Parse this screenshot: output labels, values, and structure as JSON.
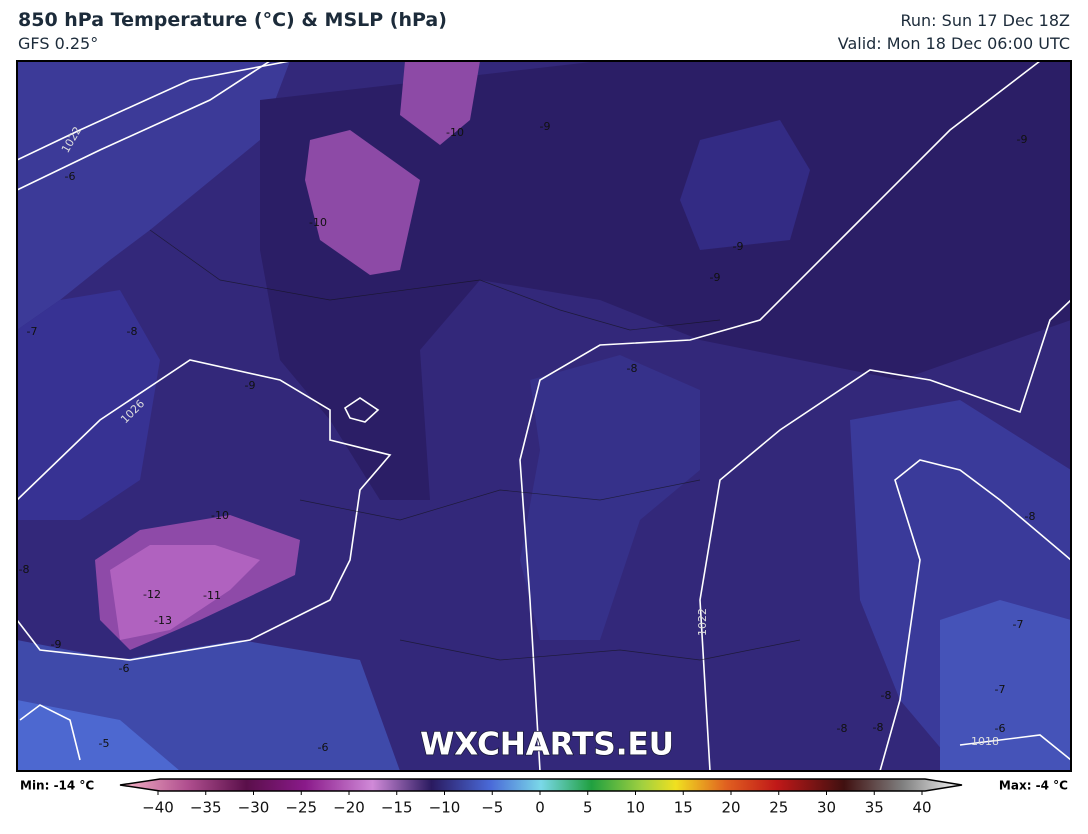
{
  "header": {
    "title": "850 hPa Temperature (°C) & MSLP (hPa)",
    "model": "GFS 0.25°",
    "run": "Run: Sun 17 Dec 18Z",
    "valid": "Valid: Mon 18 Dec 06:00 UTC"
  },
  "map": {
    "contour_labels": [
      -6,
      1022,
      -7,
      -8,
      -9,
      1026,
      -10,
      -10,
      -9,
      -9,
      -9,
      -9,
      -8,
      -8,
      -7,
      -7,
      -6,
      1018,
      -8,
      -8,
      -8,
      -5,
      -6,
      -6,
      -12,
      -11,
      -13,
      -8,
      -9,
      -10,
      1022
    ],
    "watermark": "WXCHARTS.EU"
  },
  "colorbar": {
    "min_label": "Min: -14 °C",
    "max_label": "Max: -4 °C",
    "ticks": [
      {
        "value": -40,
        "label": "−40"
      },
      {
        "value": -35,
        "label": "−35"
      },
      {
        "value": -30,
        "label": "−30"
      },
      {
        "value": -25,
        "label": "−25"
      },
      {
        "value": -20,
        "label": "−20"
      },
      {
        "value": -15,
        "label": "−15"
      },
      {
        "value": -10,
        "label": "−10"
      },
      {
        "value": -5,
        "label": "−5"
      },
      0,
      5,
      10,
      15,
      20,
      25,
      30,
      35,
      40
    ]
  }
}
